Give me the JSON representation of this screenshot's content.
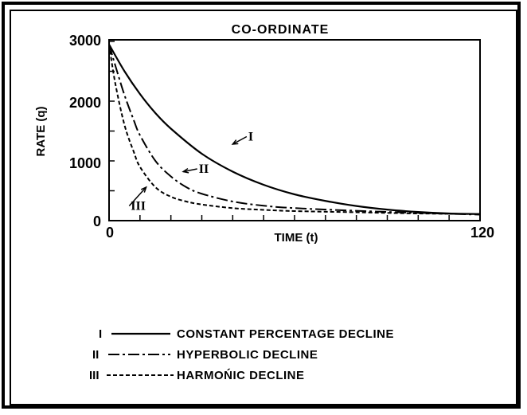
{
  "chart_data": {
    "type": "line",
    "title": "CO-ORDINATE",
    "xlabel": "TIME (t)",
    "ylabel": "RATE (q)",
    "xlim": [
      0,
      120
    ],
    "ylim": [
      0,
      3000
    ],
    "x_tick_labels": [
      "0",
      "120"
    ],
    "y_tick_labels": [
      "0",
      "1000",
      "2000",
      "3000"
    ],
    "grid": false,
    "legend_position": "below plot",
    "series": [
      {
        "name": "I",
        "style": "solid",
        "x": [
          0,
          5,
          10,
          15,
          20,
          30,
          40,
          50,
          60,
          70,
          80,
          90,
          100,
          110,
          120
        ],
        "y": [
          2950,
          2500,
          2120,
          1800,
          1540,
          1120,
          820,
          600,
          440,
          330,
          245,
          185,
          145,
          120,
          110
        ]
      },
      {
        "name": "II",
        "style": "dash-dot",
        "x": [
          0,
          2,
          5,
          8,
          10,
          15,
          20,
          25,
          30,
          40,
          50,
          60,
          80,
          100,
          120
        ],
        "y": [
          2950,
          2600,
          2100,
          1680,
          1430,
          1000,
          740,
          560,
          450,
          320,
          250,
          210,
          165,
          130,
          100
        ]
      },
      {
        "name": "III",
        "style": "dashed",
        "x": [
          0,
          2,
          5,
          8,
          10,
          15,
          20,
          25,
          30,
          40,
          50,
          60,
          80,
          100,
          120
        ],
        "y": [
          2950,
          2300,
          1600,
          1150,
          900,
          560,
          400,
          320,
          270,
          210,
          180,
          160,
          140,
          120,
          110
        ]
      }
    ],
    "annotations": [
      {
        "text": "I",
        "x": 44,
        "y": 1420
      },
      {
        "text": "II",
        "x": 28,
        "y": 880
      },
      {
        "text": "III",
        "x": 6,
        "y": 260
      }
    ],
    "legend": [
      {
        "mark": "I",
        "style": "solid",
        "label": "CONSTANT PERCENTAGE DECLINE"
      },
      {
        "mark": "II",
        "style": "dash-dot",
        "label": "HYPERBOLIC DECLINE"
      },
      {
        "mark": "III",
        "style": "dashed",
        "label": "HARMOŃIC DECLINE"
      }
    ]
  }
}
